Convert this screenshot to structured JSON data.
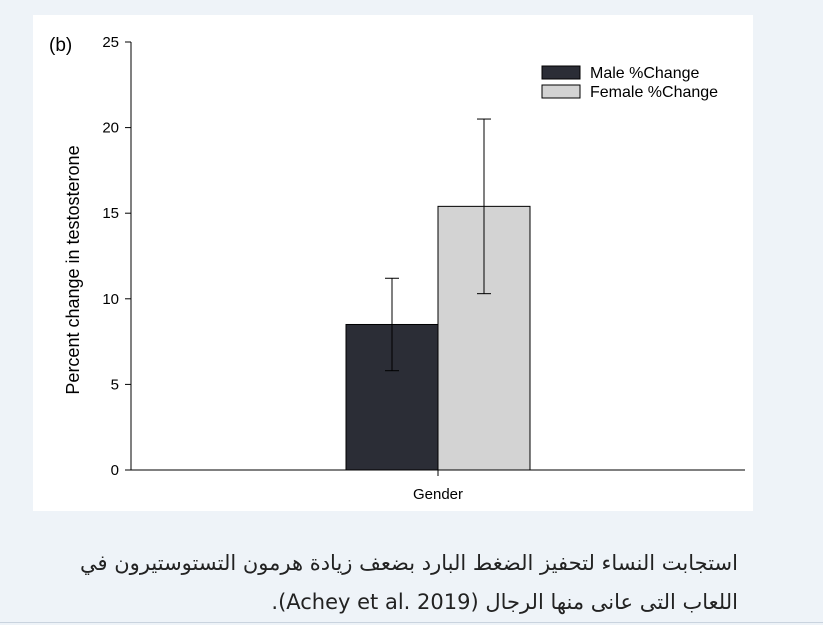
{
  "chart_data": {
    "type": "bar",
    "panel_label": "(b)",
    "ylabel": "Percent change in testosterone",
    "xlabel": "",
    "ylim": [
      0,
      25
    ],
    "yticks": [
      0,
      5,
      10,
      15,
      20,
      25
    ],
    "categories": [
      "Gender"
    ],
    "series": [
      {
        "name": "Male %Change",
        "values": [
          8.5
        ],
        "error": [
          2.7
        ],
        "color": "#2b2d36"
      },
      {
        "name": "Female %Change",
        "values": [
          15.4
        ],
        "error": [
          5.1
        ],
        "color": "#d3d3d3"
      }
    ],
    "legend_position": "top-right"
  },
  "caption": {
    "line1": "استجابت النساء لتحفيز الضغط البارد بضعف زيادة هرمون التستوستيرون في",
    "line2": "اللعاب التى عانى منها الرجال (Achey et al. 2019)."
  }
}
